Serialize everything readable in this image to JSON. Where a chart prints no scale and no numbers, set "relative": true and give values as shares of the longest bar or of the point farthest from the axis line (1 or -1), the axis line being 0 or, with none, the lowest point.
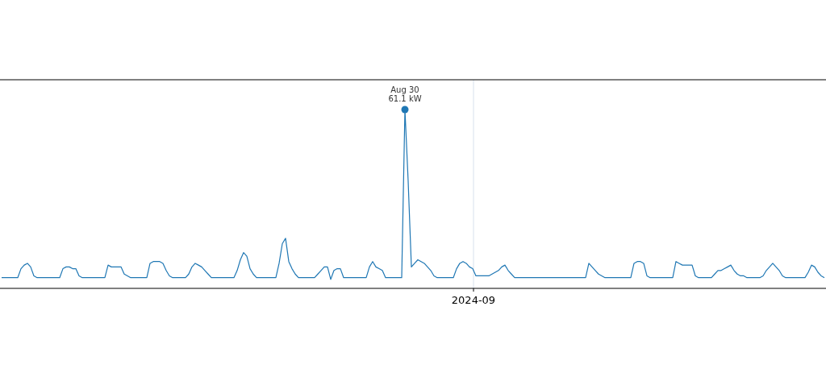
{
  "chart_data": {
    "type": "line",
    "relative": true,
    "marker": "none",
    "line_style": "solid",
    "annotations": [
      "Aug 30\n61.1 kW",
      "2024-09"
    ],
    "categories": [
      null,
      null,
      null,
      null,
      null,
      null,
      null,
      null,
      null,
      null,
      null,
      null,
      null,
      null,
      null,
      null,
      null,
      null,
      null,
      null,
      null,
      null,
      null,
      null,
      null,
      null,
      null,
      null,
      null,
      null,
      null,
      null,
      null,
      null,
      null,
      null,
      null,
      null,
      null,
      null,
      null,
      null,
      null,
      null,
      null,
      null,
      null,
      null,
      null,
      null,
      null,
      null,
      null,
      null,
      null,
      null,
      null,
      null,
      null,
      null,
      null,
      null,
      null,
      null,
      null,
      null,
      null,
      null,
      null,
      null,
      null,
      null,
      null,
      null,
      null,
      null,
      null,
      null,
      null,
      null,
      null,
      null,
      null,
      null,
      null,
      null,
      null,
      null,
      null,
      null,
      null,
      null,
      null,
      null,
      null,
      null,
      null,
      null,
      null,
      null,
      null,
      null,
      null,
      null,
      null,
      null,
      null,
      null,
      null,
      null,
      null,
      null,
      null,
      null,
      null,
      null,
      null,
      null,
      null,
      null,
      null,
      null,
      null,
      null,
      null,
      null,
      null,
      null,
      null,
      null,
      null,
      null,
      null,
      null,
      null,
      null,
      null,
      null,
      null,
      null,
      null,
      null,
      null,
      null,
      null,
      null,
      null,
      null,
      null,
      null,
      null,
      null,
      null,
      null,
      null,
      null,
      null,
      null,
      null,
      null,
      null,
      null,
      null,
      null,
      null,
      null,
      null,
      null,
      null,
      null,
      null,
      null,
      null,
      null,
      null,
      null,
      null,
      null,
      null,
      null,
      null,
      null,
      null,
      null,
      null,
      null,
      null,
      null,
      null,
      null,
      null,
      null,
      null,
      null,
      null,
      null,
      null,
      null,
      null,
      null,
      null,
      null,
      null,
      null,
      null,
      null,
      null,
      null,
      null,
      null,
      null,
      null,
      null,
      null,
      null,
      null,
      null,
      null,
      null,
      null,
      null,
      null,
      null,
      null,
      null,
      null,
      null,
      null,
      null,
      null,
      null,
      null,
      null,
      null,
      null,
      null,
      null,
      null,
      null,
      null,
      null,
      null,
      null,
      null,
      null,
      null,
      null,
      null,
      null,
      null,
      null,
      null,
      null,
      null,
      null,
      null
    ],
    "series": [
      {
        "color": "#1f77b4",
        "values": [
          0.06,
          0.06,
          0.06,
          0.06,
          0.06,
          0.06,
          0.11,
          0.13,
          0.14,
          0.12,
          0.07,
          0.06,
          0.06,
          0.06,
          0.06,
          0.06,
          0.06,
          0.06,
          0.06,
          0.11,
          0.12,
          0.12,
          0.11,
          0.11,
          0.07,
          0.06,
          0.06,
          0.06,
          0.06,
          0.06,
          0.06,
          0.06,
          0.06,
          0.13,
          0.12,
          0.12,
          0.12,
          0.12,
          0.08,
          0.07,
          0.06,
          0.06,
          0.06,
          0.06,
          0.06,
          0.06,
          0.14,
          0.15,
          0.15,
          0.15,
          0.14,
          0.1,
          0.07,
          0.06,
          0.06,
          0.06,
          0.06,
          0.06,
          0.08,
          0.12,
          0.14,
          0.13,
          0.12,
          0.1,
          0.08,
          0.06,
          0.06,
          0.06,
          0.06,
          0.06,
          0.06,
          0.06,
          0.06,
          0.1,
          0.16,
          0.2,
          0.18,
          0.11,
          0.08,
          0.06,
          0.06,
          0.06,
          0.06,
          0.06,
          0.06,
          0.06,
          0.14,
          0.25,
          0.28,
          0.15,
          0.11,
          0.08,
          0.06,
          0.06,
          0.06,
          0.06,
          0.06,
          0.06,
          0.08,
          0.1,
          0.12,
          0.12,
          0.05,
          0.1,
          0.11,
          0.11,
          0.06,
          0.06,
          0.06,
          0.06,
          0.06,
          0.06,
          0.06,
          0.06,
          0.12,
          0.15,
          0.12,
          0.11,
          0.1,
          0.06,
          0.06,
          0.06,
          0.06,
          0.06,
          0.06,
          1,
          0.6,
          0.12,
          0.14,
          0.16,
          0.15,
          0.14,
          0.12,
          0.1,
          0.07,
          0.06,
          0.06,
          0.06,
          0.06,
          0.06,
          0.06,
          0.11,
          0.14,
          0.15,
          0.14,
          0.12,
          0.11,
          0.07,
          0.07,
          0.07,
          0.07,
          0.07,
          0.08,
          0.09,
          0.1,
          0.12,
          0.13,
          0.1,
          0.08,
          0.06,
          0.06,
          0.06,
          0.06,
          0.06,
          0.06,
          0.06,
          0.06,
          0.06,
          0.06,
          0.06,
          0.06,
          0.06,
          0.06,
          0.06,
          0.06,
          0.06,
          0.06,
          0.06,
          0.06,
          0.06,
          0.06,
          0.06,
          0.14,
          0.12,
          0.1,
          0.08,
          0.07,
          0.06,
          0.06,
          0.06,
          0.06,
          0.06,
          0.06,
          0.06,
          0.06,
          0.06,
          0.14,
          0.15,
          0.15,
          0.14,
          0.07,
          0.06,
          0.06,
          0.06,
          0.06,
          0.06,
          0.06,
          0.06,
          0.06,
          0.15,
          0.14,
          0.13,
          0.13,
          0.13,
          0.13,
          0.07,
          0.06,
          0.06,
          0.06,
          0.06,
          0.06,
          0.08,
          0.1,
          0.1,
          0.11,
          0.12,
          0.13,
          0.1,
          0.08,
          0.07,
          0.07,
          0.06,
          0.06,
          0.06,
          0.06,
          0.06,
          0.07,
          0.1,
          0.12,
          0.14,
          0.12,
          0.1,
          0.07,
          0.06,
          0.06,
          0.06,
          0.06,
          0.06,
          0.06,
          0.06,
          0.09,
          0.13,
          0.12,
          0.09,
          0.07,
          0.06
        ]
      }
    ]
  }
}
